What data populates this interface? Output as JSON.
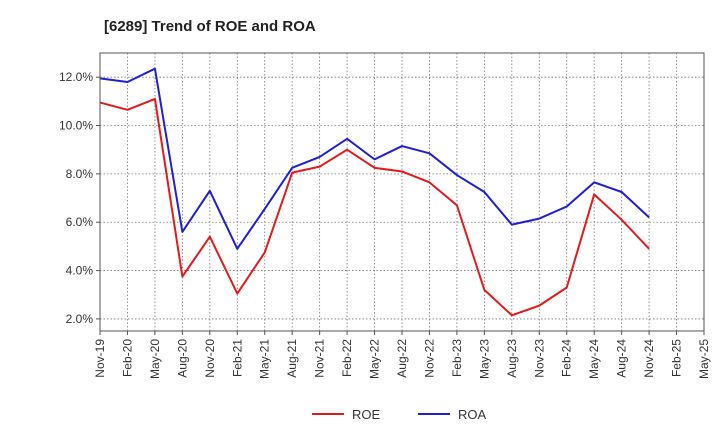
{
  "chart_data": {
    "type": "line",
    "title": "[6289]  Trend of ROE and ROA",
    "xlabel": "",
    "ylabel": "",
    "categories": [
      "Nov-19",
      "Feb-20",
      "May-20",
      "Aug-20",
      "Nov-20",
      "Feb-21",
      "May-21",
      "Aug-21",
      "Nov-21",
      "Feb-22",
      "May-22",
      "Aug-22",
      "Nov-22",
      "Feb-23",
      "May-23",
      "Aug-23",
      "Nov-23",
      "Feb-24",
      "May-24",
      "Aug-24",
      "Nov-24",
      "Feb-25",
      "May-25"
    ],
    "ylim": [
      1.5,
      13.0
    ],
    "yticks": [
      2.0,
      4.0,
      6.0,
      8.0,
      10.0,
      12.0
    ],
    "ytick_labels": [
      "2.0%",
      "4.0%",
      "6.0%",
      "8.0%",
      "10.0%",
      "12.0%"
    ],
    "grid": true,
    "legend_position": "bottom",
    "series": [
      {
        "name": "ROE",
        "color": "#e41a1c",
        "values": [
          10.95,
          10.65,
          11.1,
          3.75,
          5.4,
          3.05,
          4.75,
          8.05,
          8.3,
          9.0,
          8.25,
          8.1,
          7.65,
          6.7,
          3.2,
          2.15,
          2.55,
          3.3,
          7.15,
          6.1,
          4.9,
          null,
          null
        ]
      },
      {
        "name": "ROA",
        "color": "#1f1fd6",
        "values": [
          11.95,
          11.8,
          12.35,
          5.6,
          7.3,
          4.9,
          6.55,
          8.25,
          8.7,
          9.45,
          8.6,
          9.15,
          8.85,
          7.95,
          7.25,
          5.9,
          6.15,
          6.65,
          7.65,
          7.25,
          6.2,
          null,
          null
        ]
      }
    ]
  }
}
